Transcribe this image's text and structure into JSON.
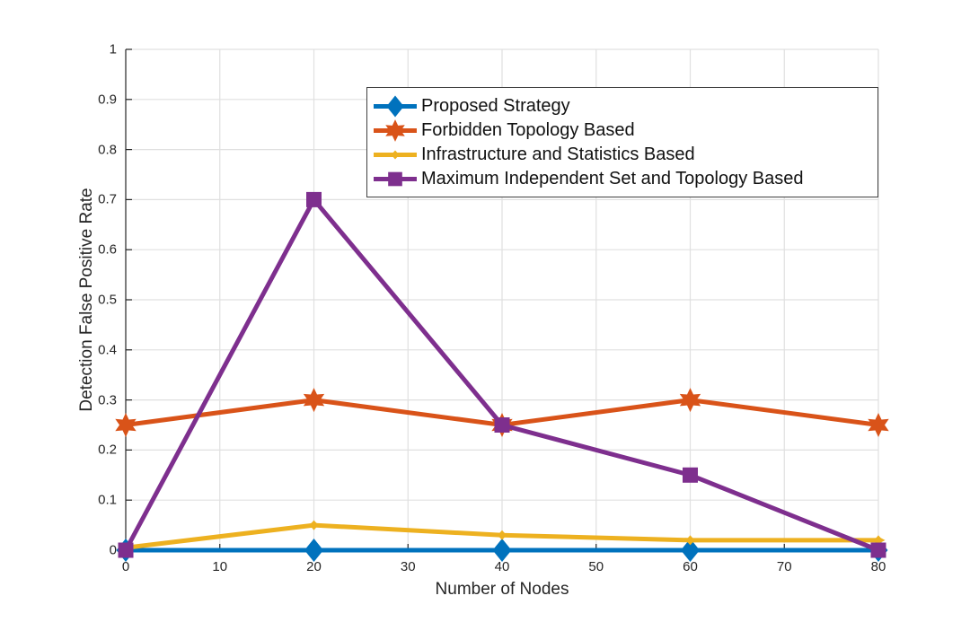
{
  "chart_data": {
    "type": "line",
    "xlabel": "Number of Nodes",
    "ylabel": "Detection False Positive Rate",
    "xlim": [
      0,
      80
    ],
    "ylim": [
      0,
      1
    ],
    "xticks": [
      0,
      10,
      20,
      30,
      40,
      50,
      60,
      70,
      80
    ],
    "xtick_labels": [
      "0",
      "10",
      "20",
      "30",
      "40",
      "50",
      "60",
      "70",
      "80"
    ],
    "yticks": [
      0,
      0.1,
      0.2,
      0.3,
      0.4,
      0.5,
      0.6,
      0.7,
      0.8,
      0.9,
      1
    ],
    "ytick_labels": [
      "0",
      "0.1",
      "0.2",
      "0.3",
      "0.4",
      "0.5",
      "0.6",
      "0.7",
      "0.8",
      "0.9",
      "1"
    ],
    "grid": true,
    "x": [
      0,
      20,
      40,
      60,
      80
    ],
    "series": [
      {
        "name": "Proposed Strategy",
        "color": "#0072BD",
        "marker": "diamond",
        "values": [
          0,
          0,
          0,
          0,
          0
        ]
      },
      {
        "name": "Forbidden Topology Based",
        "color": "#D95319",
        "marker": "hexagram",
        "values": [
          0.25,
          0.3,
          0.25,
          0.3,
          0.25
        ]
      },
      {
        "name": "Infrastructure and Statistics Based",
        "color": "#EDB120",
        "marker": "star4",
        "values": [
          0.005,
          0.05,
          0.03,
          0.02,
          0.02
        ]
      },
      {
        "name": "Maximum Independent Set and Topology Based",
        "color": "#7E2F8E",
        "marker": "square",
        "values": [
          0,
          0.7,
          0.25,
          0.15,
          0
        ]
      }
    ],
    "legend_position": "upper-right-inside"
  },
  "colors": {
    "background": "#ffffff",
    "axis": "#262626",
    "grid": "#e0e0e0",
    "text": "#262626",
    "legend_border": "#404040",
    "legend_text": "#111111"
  }
}
